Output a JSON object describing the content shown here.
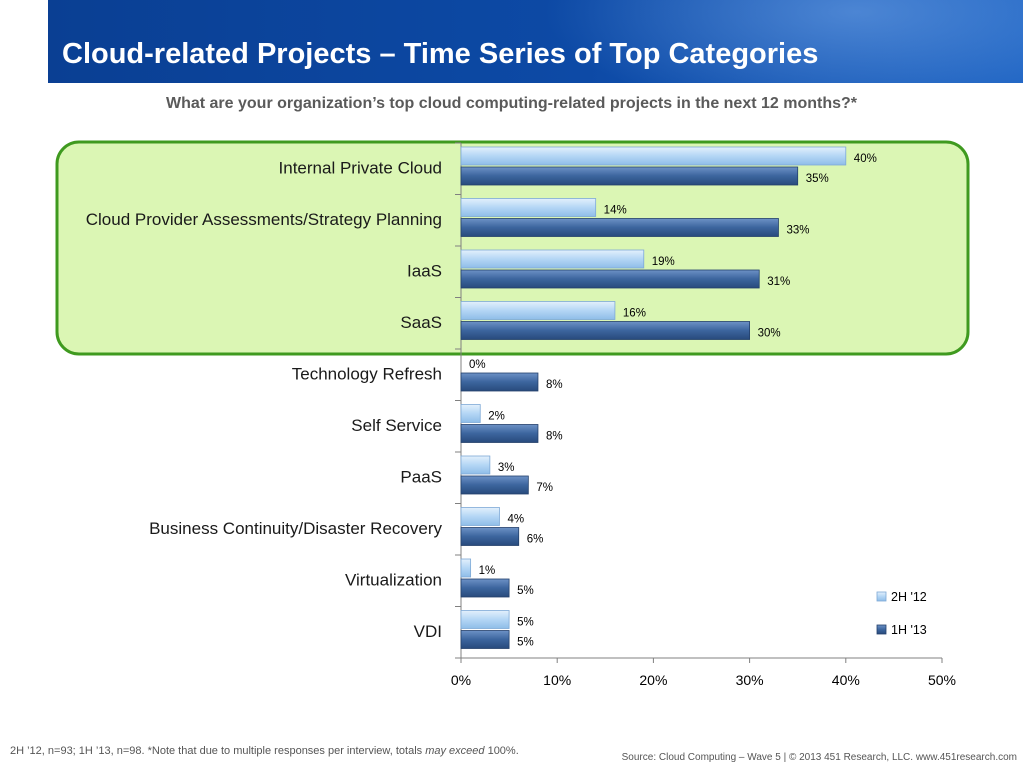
{
  "header": {
    "title": "Cloud-related Projects – Time Series of Top Categories",
    "subtitle": "What are your organization’s top cloud computing-related projects in the next 12 months?*"
  },
  "footer": {
    "note_pre": "2H ’12, n=93; 1H ’13, n=98. *Note that due to multiple responses per interview, totals ",
    "note_em": "may exceed",
    "note_post": " 100%.",
    "source": "Source: Cloud Computing – Wave 5 | © 2013 451 Research, LLC. www.451research.com"
  },
  "colors": {
    "series_2h12": "#b4d6f5",
    "series_1h13": "#3c659e",
    "highlight_fill": "#dbf6b4",
    "highlight_border": "#3f9a1f",
    "title_bar": "#0d4aa6"
  },
  "chart_data": {
    "type": "bar",
    "orientation": "horizontal",
    "categories": [
      "Internal Private Cloud",
      "Cloud Provider Assessments/Strategy Planning",
      "IaaS",
      "SaaS",
      "Technology Refresh",
      "Self Service",
      "PaaS",
      "Business Continuity/Disaster Recovery",
      "Virtualization",
      "VDI"
    ],
    "series": [
      {
        "name": "2H '12",
        "values": [
          40,
          14,
          19,
          16,
          0,
          2,
          3,
          4,
          1,
          5
        ]
      },
      {
        "name": "1H '13",
        "values": [
          35,
          33,
          31,
          30,
          8,
          8,
          7,
          6,
          5,
          5
        ]
      }
    ],
    "xlim": [
      0,
      50
    ],
    "xticks": [
      "0%",
      "10%",
      "20%",
      "30%",
      "40%",
      "50%"
    ],
    "value_suffix": "%",
    "legend_position": "bottom-right",
    "highlighted_categories": [
      0,
      1,
      2,
      3
    ]
  }
}
